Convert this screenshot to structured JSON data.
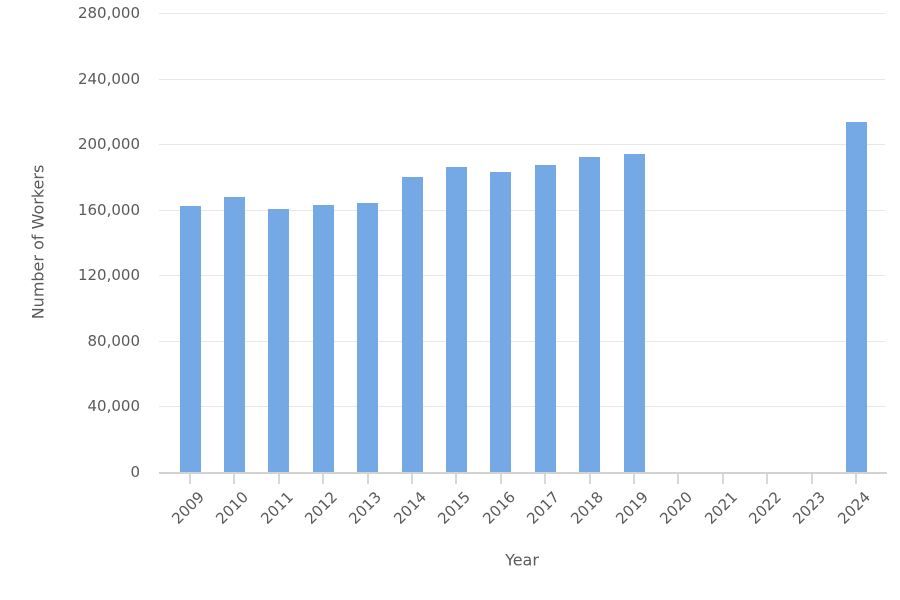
{
  "axes": {
    "x_title": "Year",
    "y_title": "Number of Workers"
  },
  "colors": {
    "bar": "#74a9e6",
    "grid": "#e8e6e6",
    "axis_line": "#d2d2d2",
    "tick": "#d8d8d8",
    "text": "#5a5a5a"
  },
  "chart_data": {
    "type": "bar",
    "title": "",
    "xlabel": "Year",
    "ylabel": "Number of Workers",
    "categories": [
      "2009",
      "2010",
      "2011",
      "2012",
      "2013",
      "2014",
      "2015",
      "2016",
      "2017",
      "2018",
      "2019",
      "2020",
      "2021",
      "2022",
      "2023",
      "2024"
    ],
    "values": [
      162000,
      167500,
      160500,
      163000,
      164000,
      180000,
      186000,
      183000,
      187500,
      192000,
      194000,
      0,
      0,
      0,
      0,
      213500
    ],
    "ylim": [
      0,
      280000
    ],
    "ytick_step": 40000,
    "yticks": [
      {
        "value": 0,
        "label": "0"
      },
      {
        "value": 40000,
        "label": "40,000"
      },
      {
        "value": 80000,
        "label": "80,000"
      },
      {
        "value": 120000,
        "label": "120,000"
      },
      {
        "value": 160000,
        "label": "160,000"
      },
      {
        "value": 200000,
        "label": "200,000"
      },
      {
        "value": 240000,
        "label": "240,000"
      },
      {
        "value": 280000,
        "label": "280,000"
      }
    ],
    "grid": true,
    "legend": "none",
    "bar_color": "#74a9e6"
  }
}
